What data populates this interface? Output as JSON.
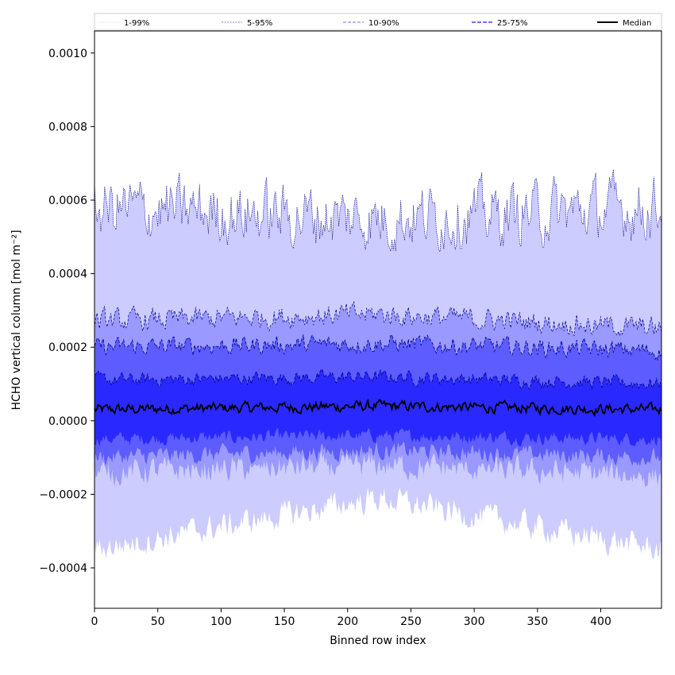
{
  "chart_data": {
    "type": "area",
    "title": "",
    "xlabel": "Binned row index",
    "ylabel": "HCHO vertical column [mol m⁻²]",
    "xlim": [
      0,
      448
    ],
    "ylim": [
      -0.00051,
      0.00106
    ],
    "x_ticks": [
      0,
      50,
      100,
      150,
      200,
      250,
      300,
      350,
      400
    ],
    "y_ticks": [
      -0.0004,
      -0.0002,
      0.0,
      0.0002,
      0.0004,
      0.0006,
      0.0008,
      0.001
    ],
    "x_tick_labels": [
      "0",
      "50",
      "100",
      "150",
      "200",
      "250",
      "300",
      "350",
      "400"
    ],
    "y_tick_labels": [
      "−0.0004",
      "−0.0002",
      "0.0000",
      "0.0002",
      "0.0004",
      "0.0006",
      "0.0008",
      "0.0010"
    ],
    "legend_position": "top",
    "legend": [
      {
        "label": "1-99%",
        "color": "#d0d0ff",
        "style": "dotted"
      },
      {
        "label": "5-95%",
        "color": "#5050e0",
        "style": "dotted"
      },
      {
        "label": "10-90%",
        "color": "#7070ff",
        "style": "dashed"
      },
      {
        "label": "25-75%",
        "color": "#2020ff",
        "style": "dashed"
      },
      {
        "label": "Median",
        "color": "#000000",
        "style": "solid"
      }
    ],
    "n_points": 449,
    "profiles": {
      "median": {
        "start": 3e-05,
        "mid": 4e-05,
        "end": 3e-05,
        "noise": 1.2e-05
      },
      "p25": {
        "start": -5e-05,
        "mid": -4e-05,
        "end": -5e-05,
        "noise": 1.5e-05
      },
      "p75": {
        "start": 0.00011,
        "mid": 0.00012,
        "end": 0.0001,
        "noise": 1.5e-05
      },
      "p10": {
        "start": -0.0001,
        "mid": -8e-05,
        "end": -0.0001,
        "noise": 2e-05
      },
      "p90": {
        "start": 0.0002,
        "mid": 0.00021,
        "end": 0.00019,
        "noise": 2e-05
      },
      "p5": {
        "start": -0.00014,
        "mid": -0.00012,
        "end": -0.00015,
        "noise": 3e-05
      },
      "p95": {
        "start": 0.00027,
        "mid": 0.00029,
        "end": 0.00025,
        "noise": 2.5e-05
      },
      "p1": {
        "start": -0.00035,
        "mid": -0.00021,
        "end": -0.00035,
        "noise": 3e-05
      },
      "p99": {
        "start": 0.00058,
        "mid": 0.00055,
        "end": 0.00058,
        "noise": 7e-05
      }
    },
    "band_colors": {
      "p1_p99": "#ccccff",
      "p5_p95": "#9999ff",
      "p10_p90": "#5c5cff",
      "p25_p75": "#2929ff"
    }
  }
}
